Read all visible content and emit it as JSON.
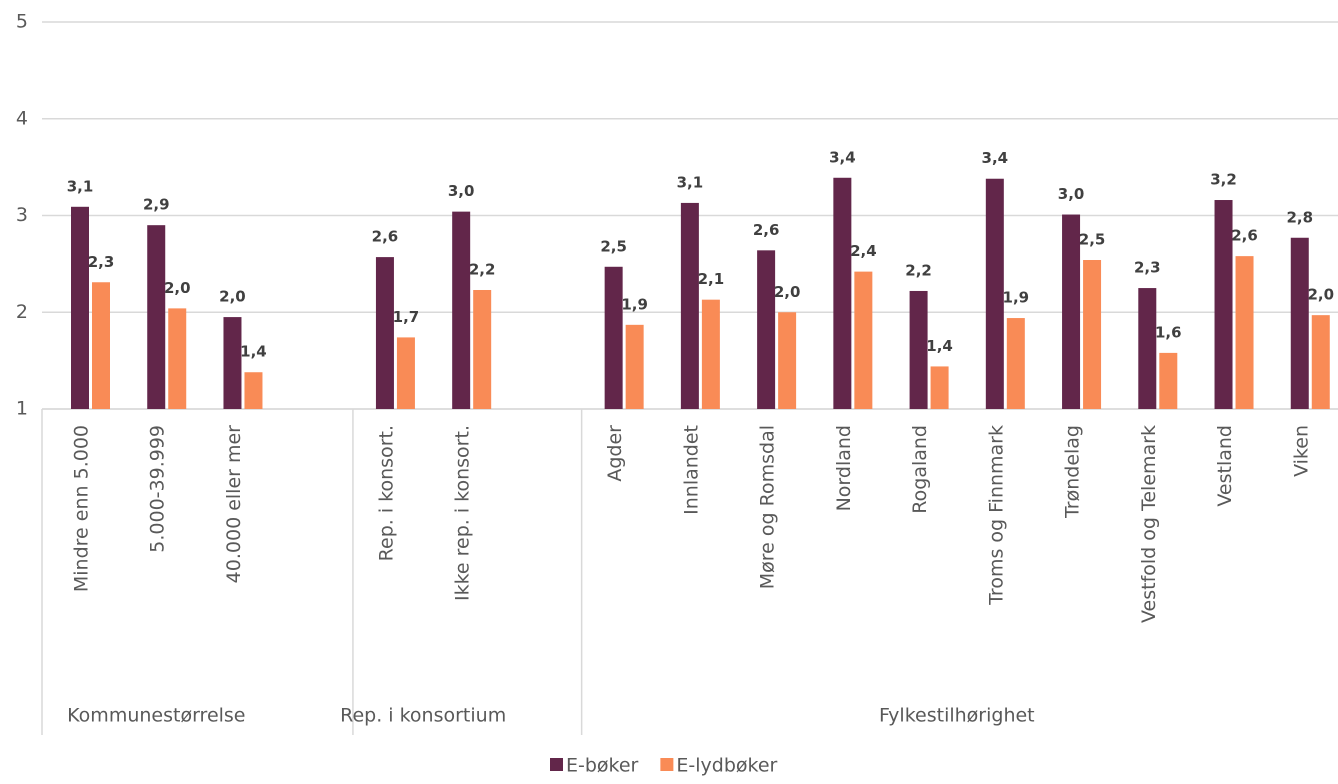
{
  "chart_data": {
    "type": "bar",
    "groups": [
      {
        "name": "Kommunestørrelse",
        "categories": [
          "Mindre enn 5.000",
          "5.000-39.999",
          "40.000 eller mer"
        ]
      },
      {
        "name": "Rep. i konsortium",
        "categories": [
          "Rep. i konsort.",
          "Ikke rep. i konsort."
        ]
      },
      {
        "name": "Fylkestilhørighet",
        "categories": [
          "Agder",
          "Innlandet",
          "Møre og Romsdal",
          "Nordland",
          "Rogaland",
          "Troms og Finnmark",
          "Trøndelag",
          "Vestfold og Telemark",
          "Vestland",
          "Viken"
        ]
      }
    ],
    "series": [
      {
        "name": "E-bøker",
        "color": "#62264a",
        "values": [
          3.09,
          2.9,
          1.95,
          2.57,
          3.04,
          2.47,
          3.13,
          2.64,
          3.39,
          2.22,
          3.38,
          3.01,
          2.25,
          3.16,
          2.77
        ],
        "value_labels": [
          "3,1",
          "2,9",
          "2,0",
          "2,6",
          "3,0",
          "2,5",
          "3,1",
          "2,6",
          "3,4",
          "2,2",
          "3,4",
          "3,0",
          "2,3",
          "3,2",
          "2,8"
        ]
      },
      {
        "name": "E-lydbøker",
        "color": "#f98b56",
        "values": [
          2.31,
          2.04,
          1.38,
          1.74,
          2.23,
          1.87,
          2.13,
          2.0,
          2.42,
          1.44,
          1.94,
          2.54,
          1.58,
          2.58,
          1.97
        ],
        "value_labels": [
          "2,3",
          "2,0",
          "1,4",
          "1,7",
          "2,2",
          "1,9",
          "2,1",
          "2,0",
          "2,4",
          "1,4",
          "1,9",
          "2,5",
          "1,6",
          "2,6",
          "2,0"
        ]
      }
    ],
    "ylim": [
      1,
      5
    ],
    "yticks": [
      1,
      2,
      3,
      4,
      5
    ],
    "grid": true,
    "legend": "bottom"
  }
}
